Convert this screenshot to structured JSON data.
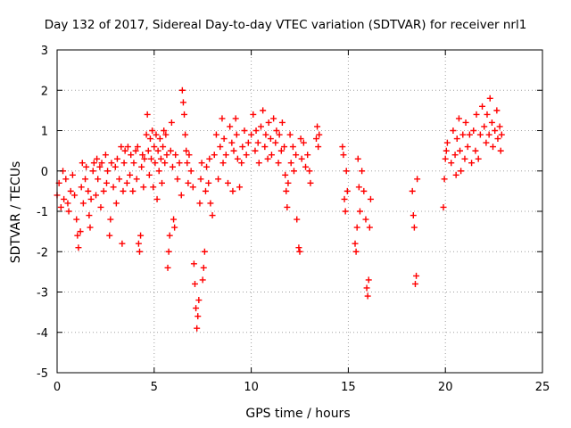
{
  "chart_data": {
    "type": "scatter",
    "title": "Day 132 of 2017, Sidereal Day-to-day VTEC variation (SDTVAR) for receiver nrl1",
    "xlabel": "GPS time / hours",
    "ylabel": "SDTVAR / TECUs",
    "xlim": [
      0,
      25
    ],
    "ylim": [
      -5,
      3
    ],
    "xticks": [
      0,
      5,
      10,
      15,
      20,
      25
    ],
    "yticks": [
      -5,
      -4,
      -3,
      -2,
      -1,
      0,
      1,
      2,
      3
    ],
    "grid": true,
    "marker": "+",
    "color": "#ff0000",
    "series": [
      {
        "name": "SDTVAR",
        "points": [
          [
            0.0,
            -0.6
          ],
          [
            0.1,
            -0.3
          ],
          [
            0.2,
            -0.9
          ],
          [
            0.3,
            0.0
          ],
          [
            0.35,
            -0.7
          ],
          [
            0.45,
            -0.2
          ],
          [
            0.55,
            -0.8
          ],
          [
            0.6,
            -1.0
          ],
          [
            0.7,
            -0.5
          ],
          [
            0.8,
            -0.1
          ],
          [
            0.9,
            -0.6
          ],
          [
            1.0,
            -1.2
          ],
          [
            1.05,
            -1.6
          ],
          [
            1.1,
            -1.9
          ],
          [
            1.2,
            -1.5
          ],
          [
            1.25,
            -0.4
          ],
          [
            1.3,
            0.2
          ],
          [
            1.35,
            -0.8
          ],
          [
            1.45,
            -0.2
          ],
          [
            1.5,
            0.1
          ],
          [
            1.6,
            -0.5
          ],
          [
            1.65,
            -1.1
          ],
          [
            1.7,
            -1.4
          ],
          [
            1.75,
            -0.7
          ],
          [
            1.85,
            0.0
          ],
          [
            1.9,
            0.2
          ],
          [
            2.0,
            -0.6
          ],
          [
            2.05,
            0.3
          ],
          [
            2.1,
            -0.2
          ],
          [
            2.2,
            0.1
          ],
          [
            2.25,
            -0.9
          ],
          [
            2.3,
            0.2
          ],
          [
            2.4,
            -0.5
          ],
          [
            2.5,
            0.4
          ],
          [
            2.55,
            -0.3
          ],
          [
            2.6,
            0.0
          ],
          [
            2.7,
            -1.6
          ],
          [
            2.75,
            -1.2
          ],
          [
            2.8,
            0.2
          ],
          [
            2.9,
            -0.4
          ],
          [
            3.0,
            0.1
          ],
          [
            3.05,
            -0.8
          ],
          [
            3.1,
            0.3
          ],
          [
            3.2,
            -0.2
          ],
          [
            3.3,
            0.6
          ],
          [
            3.35,
            -1.8
          ],
          [
            3.4,
            -0.5
          ],
          [
            3.45,
            0.2
          ],
          [
            3.5,
            0.5
          ],
          [
            3.6,
            -0.3
          ],
          [
            3.65,
            0.6
          ],
          [
            3.75,
            -0.1
          ],
          [
            3.8,
            0.4
          ],
          [
            3.9,
            -0.5
          ],
          [
            3.95,
            0.2
          ],
          [
            4.05,
            0.5
          ],
          [
            4.1,
            -0.2
          ],
          [
            4.15,
            0.6
          ],
          [
            4.2,
            -1.8
          ],
          [
            4.25,
            -2.0
          ],
          [
            4.3,
            -1.6
          ],
          [
            4.35,
            0.1
          ],
          [
            4.4,
            0.4
          ],
          [
            4.45,
            -0.4
          ],
          [
            4.5,
            0.3
          ],
          [
            4.6,
            0.9
          ],
          [
            4.65,
            1.4
          ],
          [
            4.7,
            0.5
          ],
          [
            4.75,
            -0.1
          ],
          [
            4.8,
            0.8
          ],
          [
            4.85,
            0.3
          ],
          [
            4.9,
            1.0
          ],
          [
            4.95,
            -0.4
          ],
          [
            5.0,
            0.6
          ],
          [
            5.05,
            0.2
          ],
          [
            5.1,
            0.9
          ],
          [
            5.15,
            -0.7
          ],
          [
            5.2,
            0.5
          ],
          [
            5.25,
            0.0
          ],
          [
            5.3,
            0.8
          ],
          [
            5.35,
            0.3
          ],
          [
            5.4,
            -0.3
          ],
          [
            5.45,
            0.6
          ],
          [
            5.5,
            1.0
          ],
          [
            5.55,
            0.2
          ],
          [
            5.6,
            0.9
          ],
          [
            5.65,
            0.4
          ],
          [
            5.7,
            -2.4
          ],
          [
            5.75,
            -2.0
          ],
          [
            5.8,
            -1.6
          ],
          [
            5.85,
            0.5
          ],
          [
            5.9,
            1.2
          ],
          [
            5.95,
            0.1
          ],
          [
            6.0,
            -1.2
          ],
          [
            6.05,
            -1.4
          ],
          [
            6.1,
            0.4
          ],
          [
            6.2,
            -0.2
          ],
          [
            6.3,
            0.2
          ],
          [
            6.4,
            -0.6
          ],
          [
            6.45,
            2.0
          ],
          [
            6.5,
            1.7
          ],
          [
            6.55,
            1.4
          ],
          [
            6.6,
            0.9
          ],
          [
            6.65,
            0.5
          ],
          [
            6.7,
            0.2
          ],
          [
            6.75,
            -0.3
          ],
          [
            6.8,
            0.4
          ],
          [
            6.9,
            0.0
          ],
          [
            7.0,
            -0.4
          ],
          [
            7.05,
            -2.3
          ],
          [
            7.1,
            -2.8
          ],
          [
            7.15,
            -3.4
          ],
          [
            7.2,
            -3.9
          ],
          [
            7.25,
            -3.6
          ],
          [
            7.3,
            -3.2
          ],
          [
            7.35,
            -0.8
          ],
          [
            7.4,
            -0.2
          ],
          [
            7.45,
            0.2
          ],
          [
            7.5,
            -2.7
          ],
          [
            7.55,
            -2.4
          ],
          [
            7.6,
            -2.0
          ],
          [
            7.65,
            -0.5
          ],
          [
            7.7,
            0.1
          ],
          [
            7.8,
            -0.3
          ],
          [
            7.85,
            0.3
          ],
          [
            7.9,
            -0.8
          ],
          [
            8.0,
            -1.1
          ],
          [
            8.1,
            0.4
          ],
          [
            8.2,
            0.9
          ],
          [
            8.3,
            -0.2
          ],
          [
            8.4,
            0.6
          ],
          [
            8.5,
            1.3
          ],
          [
            8.55,
            0.2
          ],
          [
            8.6,
            0.8
          ],
          [
            8.7,
            0.4
          ],
          [
            8.8,
            -0.3
          ],
          [
            8.9,
            1.1
          ],
          [
            9.0,
            0.7
          ],
          [
            9.05,
            -0.5
          ],
          [
            9.1,
            0.5
          ],
          [
            9.2,
            1.3
          ],
          [
            9.25,
            0.9
          ],
          [
            9.3,
            0.3
          ],
          [
            9.4,
            -0.4
          ],
          [
            9.5,
            0.2
          ],
          [
            9.55,
            0.6
          ],
          [
            9.65,
            1.0
          ],
          [
            9.75,
            0.4
          ],
          [
            9.85,
            0.7
          ],
          [
            10.0,
            0.9
          ],
          [
            10.1,
            1.4
          ],
          [
            10.2,
            0.5
          ],
          [
            10.25,
            1.0
          ],
          [
            10.35,
            0.7
          ],
          [
            10.4,
            0.2
          ],
          [
            10.5,
            1.1
          ],
          [
            10.6,
            1.5
          ],
          [
            10.7,
            0.6
          ],
          [
            10.75,
            0.9
          ],
          [
            10.85,
            0.3
          ],
          [
            10.9,
            1.2
          ],
          [
            11.0,
            0.8
          ],
          [
            11.05,
            0.4
          ],
          [
            11.15,
            1.3
          ],
          [
            11.25,
            0.7
          ],
          [
            11.3,
            1.0
          ],
          [
            11.4,
            0.2
          ],
          [
            11.45,
            0.9
          ],
          [
            11.55,
            0.5
          ],
          [
            11.6,
            1.2
          ],
          [
            11.7,
            0.6
          ],
          [
            11.75,
            -0.1
          ],
          [
            11.8,
            -0.5
          ],
          [
            11.85,
            -0.9
          ],
          [
            11.9,
            -0.3
          ],
          [
            12.0,
            0.9
          ],
          [
            12.05,
            0.2
          ],
          [
            12.15,
            0.6
          ],
          [
            12.2,
            0.0
          ],
          [
            12.3,
            0.4
          ],
          [
            12.35,
            -1.2
          ],
          [
            12.45,
            -1.9
          ],
          [
            12.5,
            -2.0
          ],
          [
            12.55,
            0.8
          ],
          [
            12.6,
            0.3
          ],
          [
            12.7,
            0.7
          ],
          [
            12.8,
            0.1
          ],
          [
            12.9,
            0.4
          ],
          [
            13.0,
            0.0
          ],
          [
            13.05,
            -0.3
          ],
          [
            13.35,
            0.8
          ],
          [
            13.4,
            1.1
          ],
          [
            13.45,
            0.6
          ],
          [
            13.5,
            0.9
          ],
          [
            14.7,
            0.6
          ],
          [
            14.75,
            0.4
          ],
          [
            14.8,
            -0.7
          ],
          [
            14.85,
            -1.0
          ],
          [
            14.9,
            0.0
          ],
          [
            14.95,
            -0.5
          ],
          [
            15.35,
            -1.8
          ],
          [
            15.4,
            -2.0
          ],
          [
            15.45,
            -1.4
          ],
          [
            15.5,
            0.3
          ],
          [
            15.55,
            -0.4
          ],
          [
            15.6,
            -1.0
          ],
          [
            15.7,
            0.0
          ],
          [
            15.8,
            -0.5
          ],
          [
            15.9,
            -1.2
          ],
          [
            15.95,
            -2.9
          ],
          [
            16.0,
            -3.1
          ],
          [
            16.05,
            -2.7
          ],
          [
            16.1,
            -1.4
          ],
          [
            16.15,
            -0.7
          ],
          [
            18.3,
            -0.5
          ],
          [
            18.35,
            -1.1
          ],
          [
            18.4,
            -1.4
          ],
          [
            18.45,
            -2.8
          ],
          [
            18.5,
            -2.6
          ],
          [
            18.55,
            -0.2
          ],
          [
            19.9,
            -0.9
          ],
          [
            19.95,
            -0.2
          ],
          [
            20.0,
            0.3
          ],
          [
            20.05,
            0.5
          ],
          [
            20.1,
            0.7
          ],
          [
            20.3,
            0.2
          ],
          [
            20.4,
            1.0
          ],
          [
            20.5,
            0.4
          ],
          [
            20.55,
            -0.1
          ],
          [
            20.6,
            0.8
          ],
          [
            20.7,
            1.3
          ],
          [
            20.75,
            0.5
          ],
          [
            20.8,
            0.0
          ],
          [
            20.9,
            0.9
          ],
          [
            21.0,
            0.3
          ],
          [
            21.05,
            1.2
          ],
          [
            21.15,
            0.6
          ],
          [
            21.25,
            0.9
          ],
          [
            21.35,
            0.2
          ],
          [
            21.45,
            1.0
          ],
          [
            21.55,
            0.5
          ],
          [
            21.6,
            1.4
          ],
          [
            21.7,
            0.3
          ],
          [
            21.8,
            0.9
          ],
          [
            21.9,
            1.6
          ],
          [
            22.0,
            1.1
          ],
          [
            22.1,
            0.7
          ],
          [
            22.15,
            1.4
          ],
          [
            22.25,
            0.9
          ],
          [
            22.3,
            1.8
          ],
          [
            22.4,
            1.2
          ],
          [
            22.45,
            0.6
          ],
          [
            22.55,
            1.0
          ],
          [
            22.65,
            1.5
          ],
          [
            22.7,
            0.8
          ],
          [
            22.8,
            1.1
          ],
          [
            22.85,
            0.5
          ],
          [
            22.9,
            0.9
          ]
        ]
      }
    ]
  }
}
